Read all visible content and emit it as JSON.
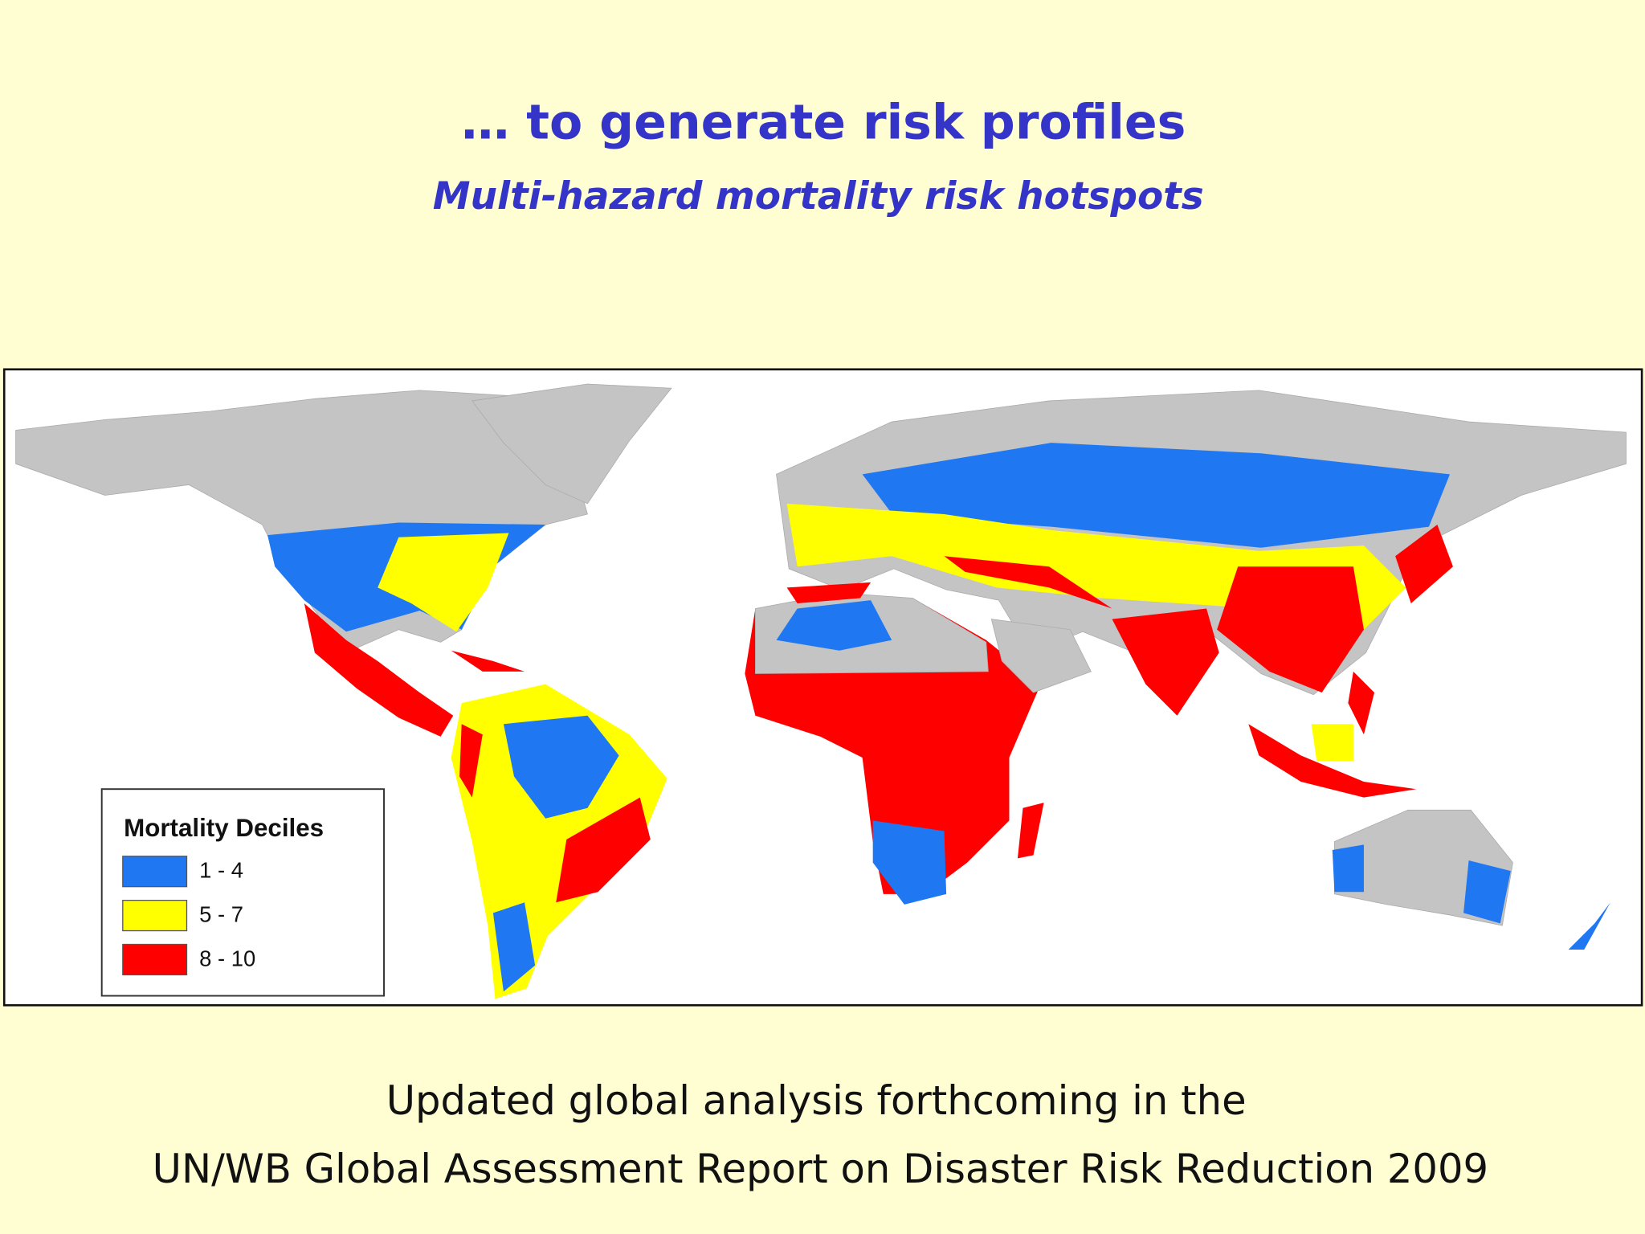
{
  "header": {
    "title": "… to generate risk profiles",
    "subtitle": "Multi-hazard mortality risk hotspots"
  },
  "legend": {
    "title": "Mortality Deciles",
    "items": [
      {
        "label": "1 - 4",
        "color": "#1f78f2"
      },
      {
        "label": "5 - 7",
        "color": "#ffff00"
      },
      {
        "label": "8 - 10",
        "color": "#ff0000"
      }
    ]
  },
  "footer": {
    "lines": [
      "Updated global analysis forthcoming in the",
      "UN/WB Global Assessment Report on Disaster Risk Reduction 2009"
    ]
  }
}
